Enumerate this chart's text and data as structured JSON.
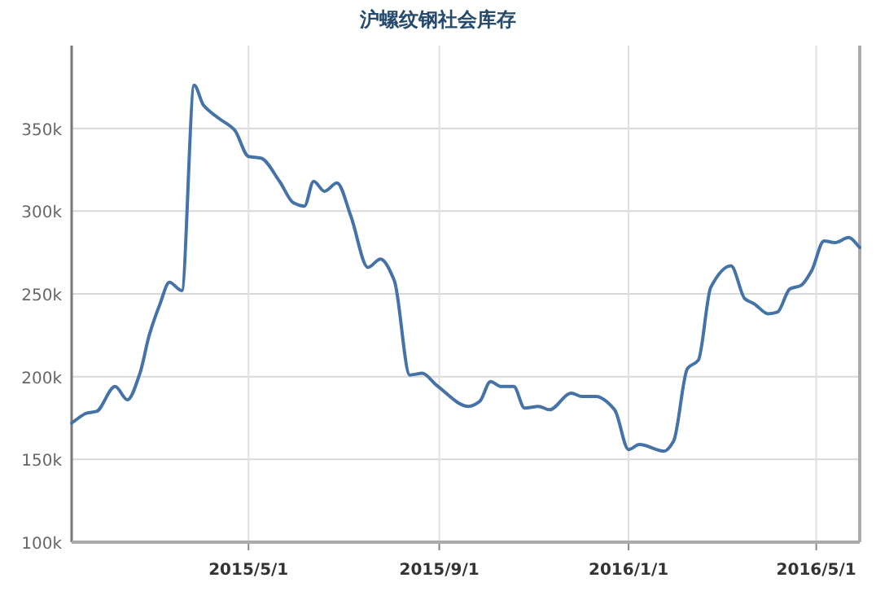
{
  "chart_data": {
    "type": "line",
    "title": "沪螺纹钢社会库存",
    "x": [
      "2015-01-07",
      "2015-01-17",
      "2015-01-23",
      "2015-02-04",
      "2015-02-12",
      "2015-02-20",
      "2015-02-26",
      "2015-03-05",
      "2015-03-11",
      "2015-03-19",
      "2015-03-27",
      "2015-04-02",
      "2015-04-12",
      "2015-04-22",
      "2015-05-01",
      "2015-05-09",
      "2015-05-21",
      "2015-05-30",
      "2015-06-06",
      "2015-06-12",
      "2015-06-19",
      "2015-06-27",
      "2015-07-06",
      "2015-07-17",
      "2015-07-25",
      "2015-08-03",
      "2015-08-13",
      "2015-08-21",
      "2015-08-30",
      "2015-09-20",
      "2015-09-27",
      "2015-10-04",
      "2015-10-11",
      "2015-10-19",
      "2015-10-26",
      "2015-11-04",
      "2015-11-11",
      "2015-11-25",
      "2015-12-02",
      "2015-12-11",
      "2015-12-23",
      "2016-01-01",
      "2016-01-08",
      "2016-01-24",
      "2016-01-30",
      "2016-02-08",
      "2016-02-15",
      "2016-02-23",
      "2016-03-07",
      "2016-03-16",
      "2016-03-22",
      "2016-03-31",
      "2016-04-06",
      "2016-04-14",
      "2016-04-21",
      "2016-04-28",
      "2016-05-06",
      "2016-05-13",
      "2016-05-22",
      "2016-05-29"
    ],
    "series": [
      {
        "color": "#4572a7",
        "values": [
          172000,
          178000,
          179000,
          194000,
          186000,
          202000,
          225000,
          244000,
          257000,
          252000,
          376000,
          364000,
          356000,
          349000,
          333000,
          332000,
          318000,
          305000,
          303000,
          318000,
          312000,
          317000,
          297000,
          266000,
          271000,
          258000,
          201000,
          202000,
          195000,
          182000,
          185000,
          197000,
          194000,
          194000,
          181000,
          182000,
          180000,
          190000,
          188000,
          188000,
          180000,
          156000,
          159000,
          155000,
          161000,
          205000,
          210000,
          254000,
          267000,
          247000,
          244000,
          238000,
          239000,
          253000,
          255000,
          264000,
          282000,
          281000,
          284000,
          278000
        ]
      }
    ],
    "xlim": [
      "2015-01-07",
      "2016-05-29"
    ],
    "xticks": [
      {
        "value": "2015-05-01",
        "label": "2015/5/1"
      },
      {
        "value": "2015-09-01",
        "label": "2015/9/1"
      },
      {
        "value": "2016-01-01",
        "label": "2016/1/1"
      },
      {
        "value": "2016-05-01",
        "label": "2016/5/1"
      }
    ],
    "ylim": [
      100000,
      400000
    ],
    "yticks": [
      {
        "value": 100000,
        "label": "100k"
      },
      {
        "value": 150000,
        "label": "150k"
      },
      {
        "value": 200000,
        "label": "200k"
      },
      {
        "value": 250000,
        "label": "250k"
      },
      {
        "value": 300000,
        "label": "300k"
      },
      {
        "value": 350000,
        "label": "350k"
      }
    ],
    "grid": true,
    "marker": "none",
    "line_style": "solid"
  }
}
